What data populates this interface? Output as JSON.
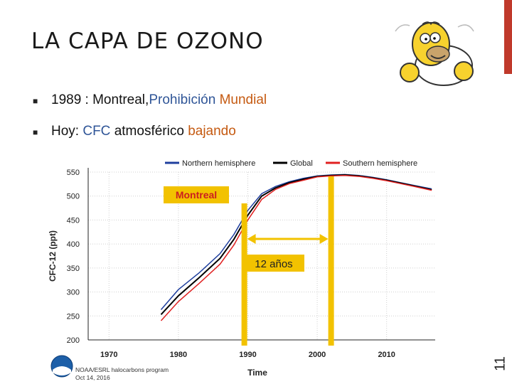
{
  "slide": {
    "title": "LA CAPA DE OZONO",
    "page_number": "11",
    "accent_bar_color": "#c0392b"
  },
  "bullets": [
    {
      "parts": [
        {
          "text": "1989 : Montreal, ",
          "color": "default"
        },
        {
          "text": "Prohibición",
          "color": "blue"
        },
        {
          "text": " Mundial",
          "color": "orange"
        }
      ]
    },
    {
      "parts": [
        {
          "text": "Hoy: ",
          "color": "default"
        },
        {
          "text": "CFC",
          "color": "blue"
        },
        {
          "text": " atmosférico ",
          "color": "default"
        },
        {
          "text": "bajando",
          "color": "orange"
        }
      ]
    }
  ],
  "image": {
    "icon": "homer-cartoon-icon"
  },
  "chart_data": {
    "type": "line",
    "ylabel": "CFC-12 (ppt)",
    "xlabel": "Time",
    "ylim": [
      200,
      550
    ],
    "xlim": [
      1967,
      2017
    ],
    "yticks": [
      200,
      250,
      300,
      350,
      400,
      450,
      500,
      550
    ],
    "xticks": [
      1970,
      1980,
      1990,
      2000,
      2010
    ],
    "grid": true,
    "legend_position": "top",
    "series": [
      {
        "name": "Northern hemisphere",
        "color": "#1f3f9e",
        "x": [
          1977.5,
          1980,
          1983,
          1986,
          1988,
          1990,
          1992,
          1994,
          1996,
          1998,
          2000,
          2002,
          2004,
          2006,
          2008,
          2010,
          2012,
          2014,
          2016.5
        ],
        "y": [
          263,
          305,
          340,
          380,
          420,
          470,
          505,
          520,
          530,
          537,
          542,
          544,
          545,
          543,
          539,
          534,
          528,
          522,
          515
        ]
      },
      {
        "name": "Global",
        "color": "#000000",
        "x": [
          1977.5,
          1980,
          1983,
          1986,
          1988,
          1990,
          1992,
          1994,
          1996,
          1998,
          2000,
          2002,
          2004,
          2006,
          2008,
          2010,
          2012,
          2014,
          2016.5
        ],
        "y": [
          253,
          292,
          330,
          370,
          410,
          460,
          500,
          517,
          528,
          535,
          541,
          543,
          544,
          542,
          538,
          533,
          527,
          521,
          513
        ]
      },
      {
        "name": "Southern hemisphere",
        "color": "#e02020",
        "x": [
          1977.5,
          1980,
          1983,
          1986,
          1988,
          1990,
          1992,
          1994,
          1996,
          1998,
          2000,
          2002,
          2004,
          2006,
          2008,
          2010,
          2012,
          2014,
          2016.5
        ],
        "y": [
          240,
          280,
          318,
          358,
          398,
          450,
          493,
          514,
          526,
          533,
          540,
          542,
          543,
          541,
          537,
          532,
          526,
          520,
          512
        ]
      }
    ],
    "annotations": {
      "montreal_label": "Montreal",
      "montreal_year": 1989.5,
      "gap_label": "12 años",
      "gap_start": 1989.5,
      "gap_end": 2002,
      "marker_color": "#f2c200"
    },
    "credits": {
      "line1": "NOAA/ESRL halocarbons program",
      "line2": "Oct 14, 2016"
    }
  }
}
